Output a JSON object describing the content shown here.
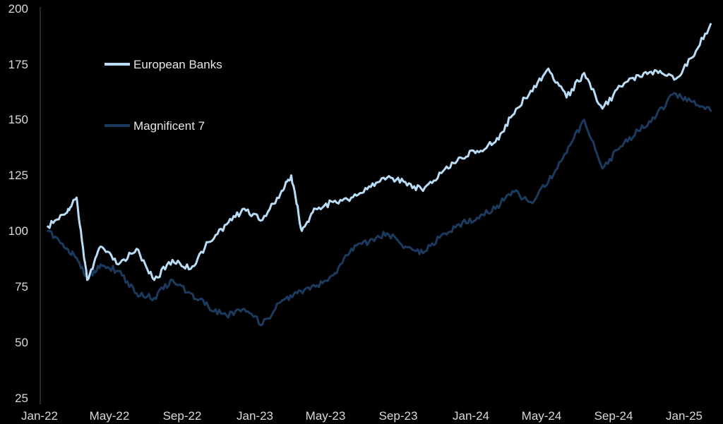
{
  "chart_data": {
    "type": "line",
    "title": "",
    "xlabel": "",
    "ylabel": "",
    "ylim": [
      25,
      200
    ],
    "y_ticks": [
      "25",
      "50",
      "75",
      "100",
      "125",
      "150",
      "175",
      "200"
    ],
    "x_ticks": [
      "Jan-22",
      "May-22",
      "Sep-22",
      "Jan-23",
      "May-23",
      "Sep-23",
      "Jan-24",
      "May-24",
      "Sep-24",
      "Jan-25"
    ],
    "grid": false,
    "legend_position": "top-left",
    "series": [
      {
        "name": "European Banks",
        "color": "#b9dcf7",
        "x": [
          "Jan-22",
          "Feb-22",
          "Mar-22",
          "Mar-22",
          "Apr-22",
          "May-22",
          "Jun-22",
          "Jul-22",
          "Aug-22",
          "Sep-22",
          "Oct-22",
          "Nov-22",
          "Dec-22",
          "Jan-23",
          "Feb-23",
          "Mar-23",
          "Mar-23",
          "Apr-23",
          "May-23",
          "Jun-23",
          "Jul-23",
          "Aug-23",
          "Sep-23",
          "Oct-23",
          "Nov-23",
          "Dec-23",
          "Jan-24",
          "Feb-24",
          "Mar-24",
          "Apr-24",
          "May-24",
          "Jun-24",
          "Jul-24",
          "Aug-24",
          "Sep-24",
          "Oct-24",
          "Nov-24",
          "Dec-24",
          "Jan-25",
          "Feb-25"
        ],
        "values": [
          102,
          108,
          115,
          78,
          93,
          85,
          92,
          78,
          87,
          83,
          95,
          103,
          110,
          105,
          117,
          125,
          100,
          110,
          113,
          115,
          120,
          124,
          122,
          118,
          126,
          133,
          136,
          140,
          152,
          163,
          173,
          160,
          171,
          155,
          165,
          170,
          172,
          168,
          178,
          193
        ]
      },
      {
        "name": "Magnificent 7",
        "color": "#1c3a5e",
        "x": [
          "Jan-22",
          "Feb-22",
          "Mar-22",
          "Mar-22",
          "Apr-22",
          "May-22",
          "Jun-22",
          "Jul-22",
          "Aug-22",
          "Sep-22",
          "Oct-22",
          "Nov-22",
          "Dec-22",
          "Jan-23",
          "Feb-23",
          "Mar-23",
          "Apr-23",
          "May-23",
          "Jun-23",
          "Jul-23",
          "Aug-23",
          "Sep-23",
          "Oct-23",
          "Nov-23",
          "Dec-23",
          "Jan-24",
          "Feb-24",
          "Mar-24",
          "Apr-24",
          "May-24",
          "Jun-24",
          "Jul-24",
          "Aug-24",
          "Sep-24",
          "Oct-24",
          "Nov-24",
          "Dec-24",
          "Jan-25",
          "Feb-25"
        ],
        "values": [
          100,
          92,
          88,
          79,
          85,
          82,
          72,
          70,
          78,
          72,
          66,
          62,
          65,
          58,
          68,
          72,
          75,
          80,
          92,
          95,
          99,
          93,
          90,
          98,
          103,
          106,
          110,
          118,
          113,
          122,
          135,
          150,
          128,
          138,
          145,
          152,
          162,
          158,
          154
        ]
      }
    ]
  }
}
